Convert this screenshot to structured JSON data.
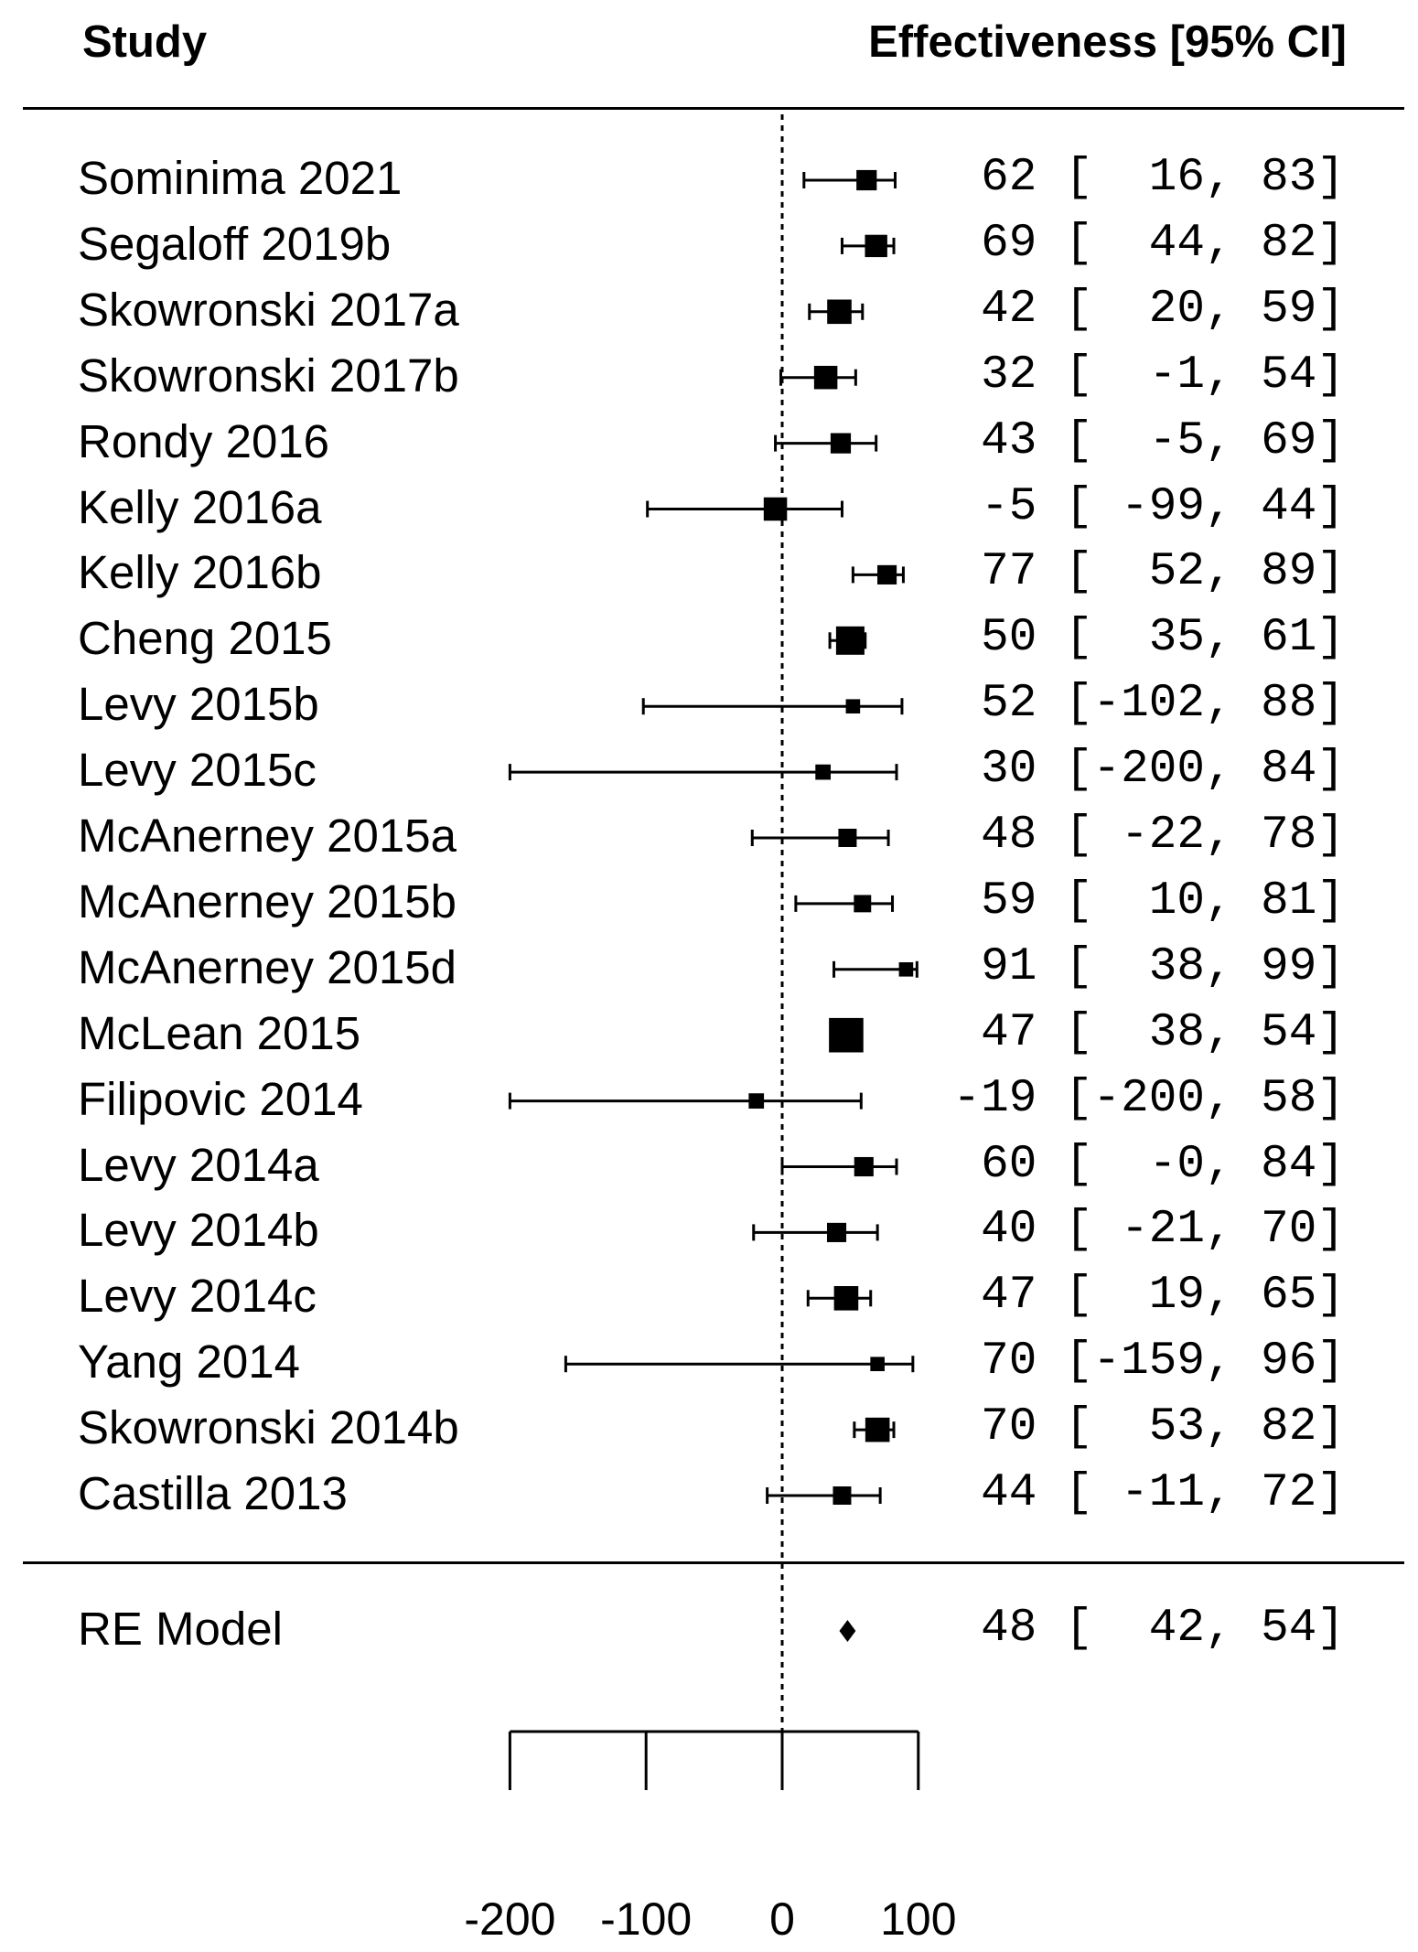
{
  "header": {
    "study_label": "Study",
    "effect_label": "Effectiveness [95% CI]"
  },
  "chart_data": {
    "type": "forest",
    "title": "",
    "xlabel": "",
    "xlim": [
      -200,
      100
    ],
    "ticks": [
      -200,
      -100,
      0,
      100
    ],
    "reference_line": 0,
    "studies": [
      {
        "name": "Sominima 2021",
        "est": 62,
        "lo": 16,
        "hi": 83,
        "ci_text": "62 [  16, 83]"
      },
      {
        "name": "Segaloff 2019b",
        "est": 69,
        "lo": 44,
        "hi": 82,
        "ci_text": "69 [  44, 82]"
      },
      {
        "name": "Skowronski 2017a",
        "est": 42,
        "lo": 20,
        "hi": 59,
        "ci_text": "42 [  20, 59]"
      },
      {
        "name": "Skowronski 2017b",
        "est": 32,
        "lo": -1,
        "hi": 54,
        "ci_text": "32 [  -1, 54]"
      },
      {
        "name": "Rondy 2016",
        "est": 43,
        "lo": -5,
        "hi": 69,
        "ci_text": "43 [  -5, 69]"
      },
      {
        "name": "Kelly 2016a",
        "est": -5,
        "lo": -99,
        "hi": 44,
        "ci_text": "-5 [ -99, 44]"
      },
      {
        "name": "Kelly 2016b",
        "est": 77,
        "lo": 52,
        "hi": 89,
        "ci_text": "77 [  52, 89]"
      },
      {
        "name": "Cheng 2015",
        "est": 50,
        "lo": 35,
        "hi": 61,
        "ci_text": "50 [  35, 61]"
      },
      {
        "name": "Levy 2015b",
        "est": 52,
        "lo": -102,
        "hi": 88,
        "ci_text": "52 [-102, 88]"
      },
      {
        "name": "Levy 2015c",
        "est": 30,
        "lo": -200,
        "hi": 84,
        "ci_text": "30 [-200, 84]"
      },
      {
        "name": "McAnerney 2015a",
        "est": 48,
        "lo": -22,
        "hi": 78,
        "ci_text": "48 [ -22, 78]"
      },
      {
        "name": "McAnerney 2015b",
        "est": 59,
        "lo": 10,
        "hi": 81,
        "ci_text": "59 [  10, 81]"
      },
      {
        "name": "McAnerney 2015d",
        "est": 91,
        "lo": 38,
        "hi": 99,
        "ci_text": "91 [  38, 99]"
      },
      {
        "name": "McLean 2015",
        "est": 47,
        "lo": 38,
        "hi": 54,
        "ci_text": "47 [  38, 54]"
      },
      {
        "name": "Filipovic 2014",
        "est": -19,
        "lo": -200,
        "hi": 58,
        "ci_text": "-19 [-200, 58]"
      },
      {
        "name": "Levy 2014a",
        "est": 60,
        "lo": 0,
        "hi": 84,
        "ci_text": "60 [  -0, 84]"
      },
      {
        "name": "Levy 2014b",
        "est": 40,
        "lo": -21,
        "hi": 70,
        "ci_text": "40 [ -21, 70]"
      },
      {
        "name": "Levy 2014c",
        "est": 47,
        "lo": 19,
        "hi": 65,
        "ci_text": "47 [  19, 65]"
      },
      {
        "name": "Yang 2014",
        "est": 70,
        "lo": -159,
        "hi": 96,
        "ci_text": "70 [-159, 96]"
      },
      {
        "name": "Skowronski 2014b",
        "est": 70,
        "lo": 53,
        "hi": 82,
        "ci_text": "70 [  53, 82]"
      },
      {
        "name": "Castilla 2013",
        "est": 44,
        "lo": -11,
        "hi": 72,
        "ci_text": "44 [ -11, 72]"
      }
    ],
    "weights": [
      1.2,
      1.4,
      1.6,
      1.5,
      1.2,
      1.5,
      1.1,
      2.0,
      0.6,
      0.7,
      1.0,
      0.9,
      0.6,
      2.6,
      0.7,
      1.1,
      1.1,
      1.6,
      0.6,
      1.6,
      1.0
    ],
    "summary": {
      "name": "RE Model",
      "est": 48,
      "lo": 42,
      "hi": 54,
      "ci_text": "48 [  42, 54]"
    }
  }
}
